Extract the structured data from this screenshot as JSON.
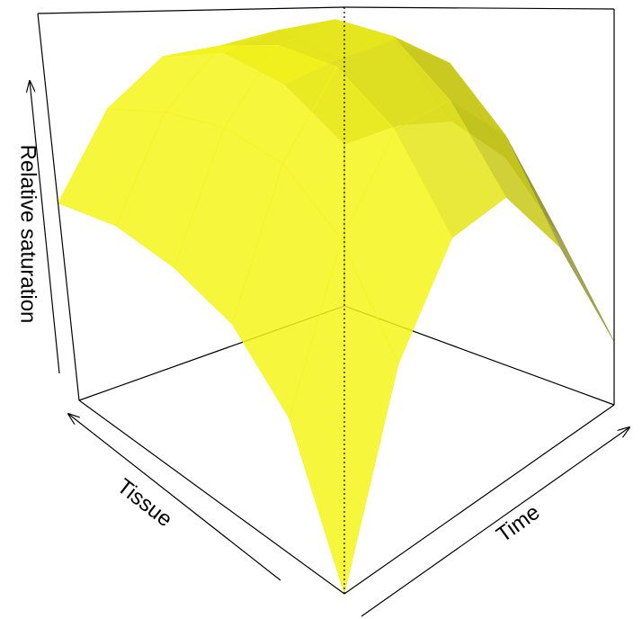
{
  "chart_data": {
    "type": "surface",
    "z_label": "Relative saturation",
    "x_label": "Tissue",
    "y_label": "Time",
    "x": [
      0,
      0.2,
      0.4,
      0.6,
      0.8,
      1
    ],
    "y": [
      0,
      0.2,
      0.4,
      0.6,
      0.8,
      1
    ],
    "z": [
      [
        0,
        0.35,
        0.55,
        0.6,
        0.45,
        0.16
      ],
      [
        0.25,
        0.55,
        0.75,
        0.8,
        0.7,
        0.4
      ],
      [
        0.38,
        0.68,
        0.88,
        0.95,
        0.88,
        0.6
      ],
      [
        0.45,
        0.74,
        0.93,
        1.0,
        0.95,
        0.7
      ],
      [
        0.5,
        0.76,
        0.93,
        0.98,
        0.9,
        0.68
      ],
      [
        0.51,
        0.75,
        0.9,
        0.92,
        0.82,
        0.6
      ]
    ],
    "zlim": [
      0,
      1
    ],
    "color": "#e8e81a"
  }
}
